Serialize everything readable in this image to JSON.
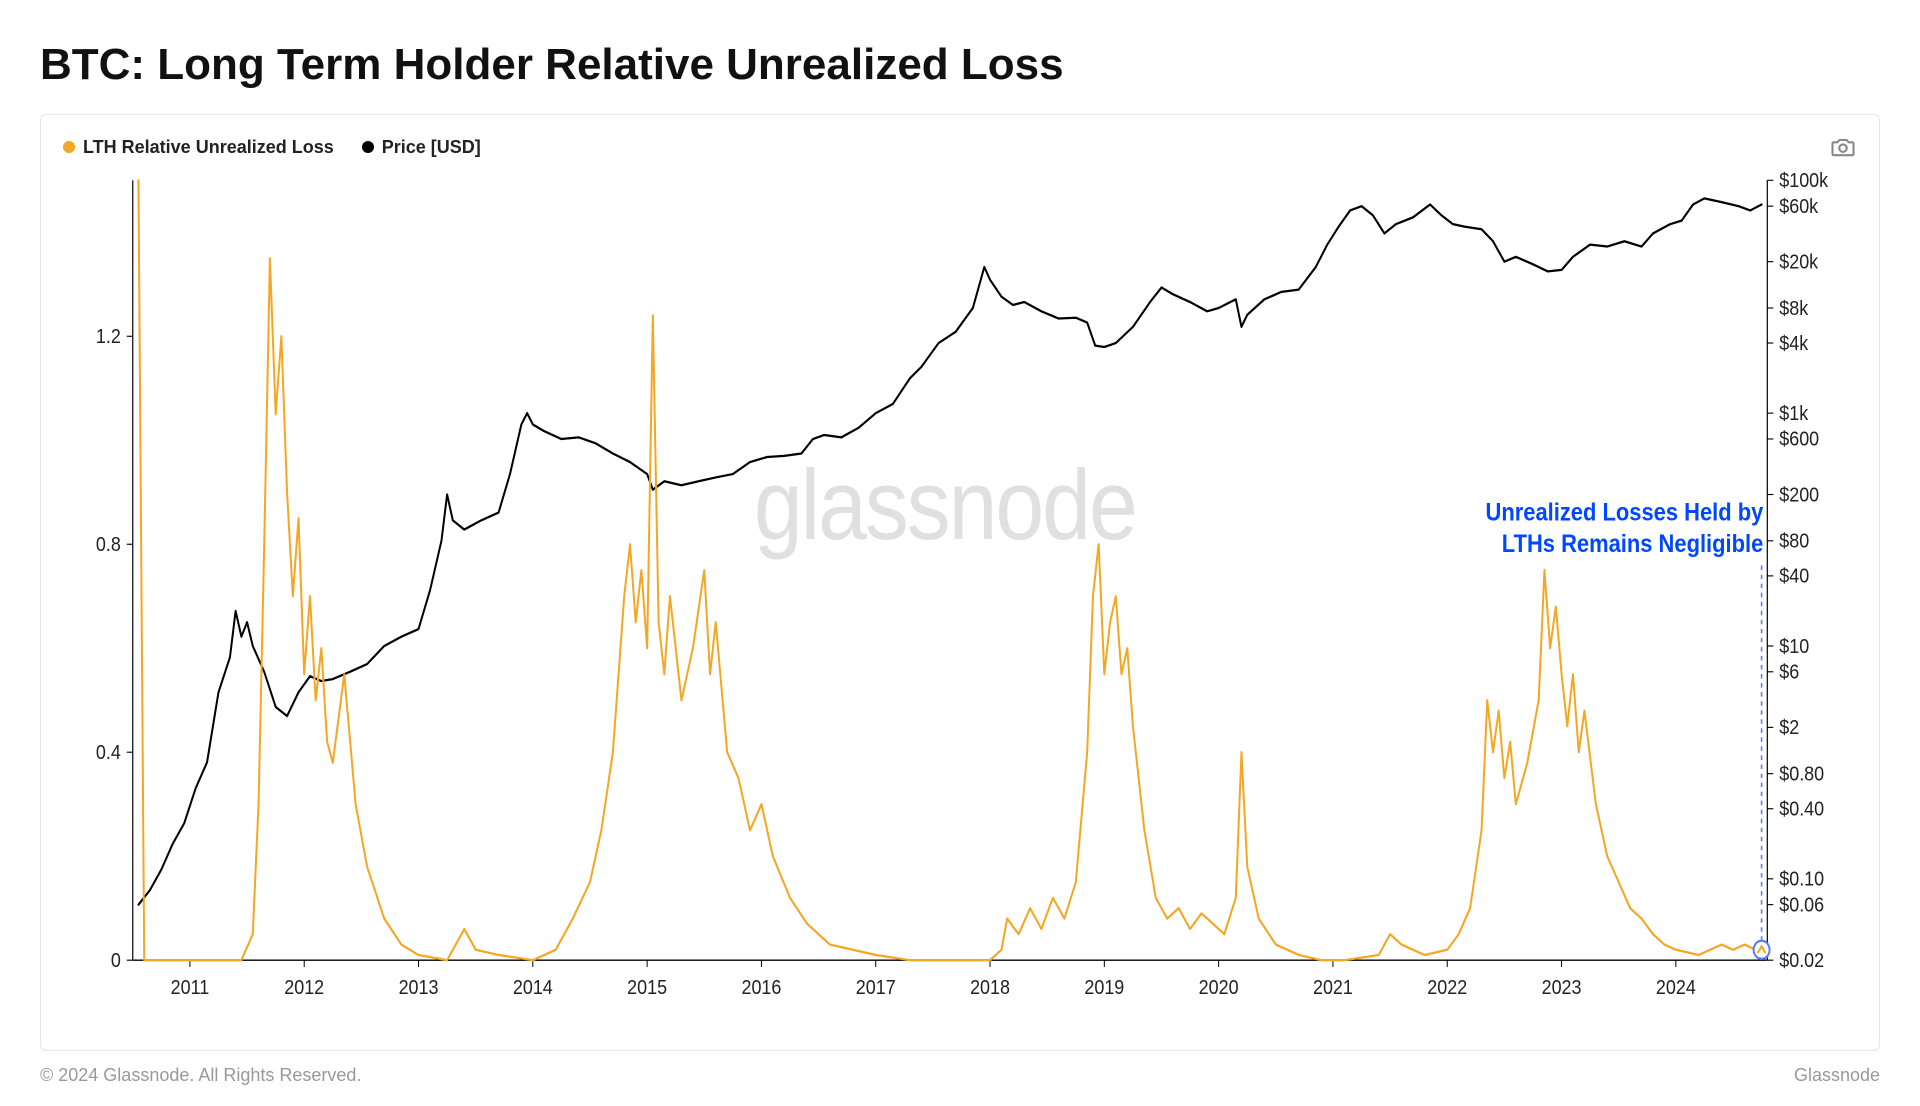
{
  "title": "BTC: Long Term Holder Relative Unrealized Loss",
  "legend": {
    "series1": {
      "label": "LTH Relative Unrealized Loss",
      "color": "#f5a623"
    },
    "series2": {
      "label": "Price [USD]",
      "color": "#000000"
    }
  },
  "watermark": "glassnode",
  "annotation": {
    "line1": "Unrealized Losses Held by",
    "line2": "LTHs Remains Negligible",
    "color": "#0047ff",
    "box_stroke": "#5a7cff"
  },
  "footer": {
    "left": "© 2024 Glassnode. All Rights Reserved.",
    "right": "Glassnode"
  },
  "chart": {
    "type": "line-dual-axis",
    "background_color": "#ffffff",
    "series1_color": "#f5a623",
    "series2_color": "#000000",
    "line_width_series1": 2.0,
    "line_width_series2": 2.0,
    "x_axis": {
      "min_year": 2010.5,
      "max_year": 2024.8,
      "ticks": [
        "2011",
        "2012",
        "2013",
        "2014",
        "2015",
        "2016",
        "2017",
        "2018",
        "2019",
        "2020",
        "2021",
        "2022",
        "2023",
        "2024"
      ]
    },
    "y_left": {
      "scale": "linear",
      "min": 0,
      "max": 1.5,
      "ticks": [
        0,
        0.4,
        0.8,
        1.2
      ]
    },
    "y_right": {
      "scale": "log",
      "min": 0.02,
      "max": 100000,
      "ticks": [
        "$0.02",
        "$0.06",
        "$0.10",
        "$0.40",
        "$0.80",
        "$2",
        "$6",
        "$10",
        "$40",
        "$80",
        "$200",
        "$600",
        "$1k",
        "$4k",
        "$8k",
        "$20k",
        "$60k",
        "$100k"
      ],
      "tick_values": [
        0.02,
        0.06,
        0.1,
        0.4,
        0.8,
        2,
        6,
        10,
        40,
        80,
        200,
        600,
        1000,
        4000,
        8000,
        20000,
        60000,
        100000
      ]
    },
    "lth_loss_points": [
      [
        2010.55,
        1.5
      ],
      [
        2010.6,
        0.0
      ],
      [
        2011.0,
        0.0
      ],
      [
        2011.45,
        0.0
      ],
      [
        2011.55,
        0.05
      ],
      [
        2011.6,
        0.3
      ],
      [
        2011.65,
        0.8
      ],
      [
        2011.7,
        1.35
      ],
      [
        2011.75,
        1.05
      ],
      [
        2011.8,
        1.2
      ],
      [
        2011.85,
        0.9
      ],
      [
        2011.9,
        0.7
      ],
      [
        2011.95,
        0.85
      ],
      [
        2012.0,
        0.55
      ],
      [
        2012.05,
        0.7
      ],
      [
        2012.1,
        0.5
      ],
      [
        2012.15,
        0.6
      ],
      [
        2012.2,
        0.42
      ],
      [
        2012.25,
        0.38
      ],
      [
        2012.35,
        0.55
      ],
      [
        2012.45,
        0.3
      ],
      [
        2012.55,
        0.18
      ],
      [
        2012.7,
        0.08
      ],
      [
        2012.85,
        0.03
      ],
      [
        2013.0,
        0.01
      ],
      [
        2013.25,
        0.0
      ],
      [
        2013.4,
        0.06
      ],
      [
        2013.5,
        0.02
      ],
      [
        2013.7,
        0.01
      ],
      [
        2014.0,
        0.0
      ],
      [
        2014.2,
        0.02
      ],
      [
        2014.35,
        0.08
      ],
      [
        2014.5,
        0.15
      ],
      [
        2014.6,
        0.25
      ],
      [
        2014.7,
        0.4
      ],
      [
        2014.75,
        0.55
      ],
      [
        2014.8,
        0.7
      ],
      [
        2014.85,
        0.8
      ],
      [
        2014.9,
        0.65
      ],
      [
        2014.95,
        0.75
      ],
      [
        2015.0,
        0.6
      ],
      [
        2015.05,
        1.24
      ],
      [
        2015.1,
        0.65
      ],
      [
        2015.15,
        0.55
      ],
      [
        2015.2,
        0.7
      ],
      [
        2015.3,
        0.5
      ],
      [
        2015.4,
        0.6
      ],
      [
        2015.5,
        0.75
      ],
      [
        2015.55,
        0.55
      ],
      [
        2015.6,
        0.65
      ],
      [
        2015.7,
        0.4
      ],
      [
        2015.8,
        0.35
      ],
      [
        2015.9,
        0.25
      ],
      [
        2016.0,
        0.3
      ],
      [
        2016.1,
        0.2
      ],
      [
        2016.25,
        0.12
      ],
      [
        2016.4,
        0.07
      ],
      [
        2016.6,
        0.03
      ],
      [
        2016.8,
        0.02
      ],
      [
        2017.0,
        0.01
      ],
      [
        2017.3,
        0.0
      ],
      [
        2017.6,
        0.0
      ],
      [
        2018.0,
        0.0
      ],
      [
        2018.1,
        0.02
      ],
      [
        2018.15,
        0.08
      ],
      [
        2018.25,
        0.05
      ],
      [
        2018.35,
        0.1
      ],
      [
        2018.45,
        0.06
      ],
      [
        2018.55,
        0.12
      ],
      [
        2018.65,
        0.08
      ],
      [
        2018.75,
        0.15
      ],
      [
        2018.85,
        0.4
      ],
      [
        2018.9,
        0.7
      ],
      [
        2018.95,
        0.8
      ],
      [
        2019.0,
        0.55
      ],
      [
        2019.05,
        0.65
      ],
      [
        2019.1,
        0.7
      ],
      [
        2019.15,
        0.55
      ],
      [
        2019.2,
        0.6
      ],
      [
        2019.25,
        0.45
      ],
      [
        2019.35,
        0.25
      ],
      [
        2019.45,
        0.12
      ],
      [
        2019.55,
        0.08
      ],
      [
        2019.65,
        0.1
      ],
      [
        2019.75,
        0.06
      ],
      [
        2019.85,
        0.09
      ],
      [
        2019.95,
        0.07
      ],
      [
        2020.05,
        0.05
      ],
      [
        2020.15,
        0.12
      ],
      [
        2020.2,
        0.4
      ],
      [
        2020.25,
        0.18
      ],
      [
        2020.35,
        0.08
      ],
      [
        2020.5,
        0.03
      ],
      [
        2020.7,
        0.01
      ],
      [
        2020.9,
        0.0
      ],
      [
        2021.1,
        0.0
      ],
      [
        2021.4,
        0.01
      ],
      [
        2021.5,
        0.05
      ],
      [
        2021.6,
        0.03
      ],
      [
        2021.8,
        0.01
      ],
      [
        2022.0,
        0.02
      ],
      [
        2022.1,
        0.05
      ],
      [
        2022.2,
        0.1
      ],
      [
        2022.3,
        0.25
      ],
      [
        2022.35,
        0.5
      ],
      [
        2022.4,
        0.4
      ],
      [
        2022.45,
        0.48
      ],
      [
        2022.5,
        0.35
      ],
      [
        2022.55,
        0.42
      ],
      [
        2022.6,
        0.3
      ],
      [
        2022.7,
        0.38
      ],
      [
        2022.8,
        0.5
      ],
      [
        2022.85,
        0.75
      ],
      [
        2022.9,
        0.6
      ],
      [
        2022.95,
        0.68
      ],
      [
        2023.0,
        0.55
      ],
      [
        2023.05,
        0.45
      ],
      [
        2023.1,
        0.55
      ],
      [
        2023.15,
        0.4
      ],
      [
        2023.2,
        0.48
      ],
      [
        2023.3,
        0.3
      ],
      [
        2023.4,
        0.2
      ],
      [
        2023.5,
        0.15
      ],
      [
        2023.6,
        0.1
      ],
      [
        2023.7,
        0.08
      ],
      [
        2023.8,
        0.05
      ],
      [
        2023.9,
        0.03
      ],
      [
        2024.0,
        0.02
      ],
      [
        2024.2,
        0.01
      ],
      [
        2024.4,
        0.03
      ],
      [
        2024.5,
        0.02
      ],
      [
        2024.6,
        0.03
      ],
      [
        2024.7,
        0.02
      ],
      [
        2024.75,
        0.02
      ]
    ],
    "price_points_log": [
      [
        2010.55,
        0.06
      ],
      [
        2010.65,
        0.08
      ],
      [
        2010.75,
        0.12
      ],
      [
        2010.85,
        0.2
      ],
      [
        2010.95,
        0.3
      ],
      [
        2011.05,
        0.6
      ],
      [
        2011.15,
        1.0
      ],
      [
        2011.25,
        4.0
      ],
      [
        2011.35,
        8.0
      ],
      [
        2011.4,
        20.0
      ],
      [
        2011.45,
        12.0
      ],
      [
        2011.5,
        16.0
      ],
      [
        2011.55,
        10.0
      ],
      [
        2011.65,
        6.0
      ],
      [
        2011.75,
        3.0
      ],
      [
        2011.85,
        2.5
      ],
      [
        2011.95,
        4.0
      ],
      [
        2012.05,
        5.5
      ],
      [
        2012.15,
        5.0
      ],
      [
        2012.25,
        5.2
      ],
      [
        2012.4,
        6.0
      ],
      [
        2012.55,
        7.0
      ],
      [
        2012.7,
        10.0
      ],
      [
        2012.85,
        12.0
      ],
      [
        2013.0,
        14.0
      ],
      [
        2013.1,
        30.0
      ],
      [
        2013.2,
        80.0
      ],
      [
        2013.25,
        200.0
      ],
      [
        2013.3,
        120.0
      ],
      [
        2013.4,
        100.0
      ],
      [
        2013.55,
        120.0
      ],
      [
        2013.7,
        140.0
      ],
      [
        2013.8,
        300.0
      ],
      [
        2013.9,
        800.0
      ],
      [
        2013.95,
        1000.0
      ],
      [
        2014.0,
        800.0
      ],
      [
        2014.1,
        700.0
      ],
      [
        2014.25,
        600.0
      ],
      [
        2014.4,
        620.0
      ],
      [
        2014.55,
        550.0
      ],
      [
        2014.7,
        450.0
      ],
      [
        2014.85,
        380.0
      ],
      [
        2015.0,
        300.0
      ],
      [
        2015.05,
        220.0
      ],
      [
        2015.15,
        260.0
      ],
      [
        2015.3,
        240.0
      ],
      [
        2015.45,
        260.0
      ],
      [
        2015.6,
        280.0
      ],
      [
        2015.75,
        300.0
      ],
      [
        2015.9,
        380.0
      ],
      [
        2016.05,
        420.0
      ],
      [
        2016.2,
        430.0
      ],
      [
        2016.35,
        450.0
      ],
      [
        2016.45,
        600.0
      ],
      [
        2016.55,
        650.0
      ],
      [
        2016.7,
        620.0
      ],
      [
        2016.85,
        750.0
      ],
      [
        2017.0,
        1000.0
      ],
      [
        2017.15,
        1200.0
      ],
      [
        2017.3,
        2000.0
      ],
      [
        2017.4,
        2500.0
      ],
      [
        2017.55,
        4000.0
      ],
      [
        2017.7,
        5000.0
      ],
      [
        2017.85,
        8000.0
      ],
      [
        2017.95,
        18000.0
      ],
      [
        2018.0,
        14000.0
      ],
      [
        2018.1,
        10000.0
      ],
      [
        2018.2,
        8500.0
      ],
      [
        2018.3,
        9000.0
      ],
      [
        2018.45,
        7500.0
      ],
      [
        2018.6,
        6500.0
      ],
      [
        2018.75,
        6600.0
      ],
      [
        2018.85,
        6000.0
      ],
      [
        2018.92,
        3800.0
      ],
      [
        2019.0,
        3700.0
      ],
      [
        2019.1,
        4000.0
      ],
      [
        2019.25,
        5500.0
      ],
      [
        2019.4,
        9000.0
      ],
      [
        2019.5,
        12000.0
      ],
      [
        2019.6,
        10500.0
      ],
      [
        2019.75,
        9000.0
      ],
      [
        2019.9,
        7500.0
      ],
      [
        2020.0,
        8000.0
      ],
      [
        2020.15,
        9500.0
      ],
      [
        2020.2,
        5500.0
      ],
      [
        2020.25,
        7000.0
      ],
      [
        2020.4,
        9500.0
      ],
      [
        2020.55,
        11000.0
      ],
      [
        2020.7,
        11500.0
      ],
      [
        2020.85,
        18000.0
      ],
      [
        2020.95,
        28000.0
      ],
      [
        2021.05,
        40000.0
      ],
      [
        2021.15,
        55000.0
      ],
      [
        2021.25,
        60000.0
      ],
      [
        2021.35,
        50000.0
      ],
      [
        2021.45,
        35000.0
      ],
      [
        2021.55,
        42000.0
      ],
      [
        2021.7,
        48000.0
      ],
      [
        2021.85,
        62000.0
      ],
      [
        2021.95,
        50000.0
      ],
      [
        2022.05,
        42000.0
      ],
      [
        2022.15,
        40000.0
      ],
      [
        2022.3,
        38000.0
      ],
      [
        2022.4,
        30000.0
      ],
      [
        2022.5,
        20000.0
      ],
      [
        2022.6,
        22000.0
      ],
      [
        2022.75,
        19000.0
      ],
      [
        2022.88,
        16500.0
      ],
      [
        2023.0,
        17000.0
      ],
      [
        2023.1,
        22000.0
      ],
      [
        2023.25,
        28000.0
      ],
      [
        2023.4,
        27000.0
      ],
      [
        2023.55,
        30000.0
      ],
      [
        2023.7,
        27000.0
      ],
      [
        2023.8,
        35000.0
      ],
      [
        2023.95,
        42000.0
      ],
      [
        2024.05,
        45000.0
      ],
      [
        2024.15,
        62000.0
      ],
      [
        2024.25,
        70000.0
      ],
      [
        2024.4,
        65000.0
      ],
      [
        2024.55,
        60000.0
      ],
      [
        2024.65,
        55000.0
      ],
      [
        2024.75,
        62000.0
      ]
    ]
  }
}
